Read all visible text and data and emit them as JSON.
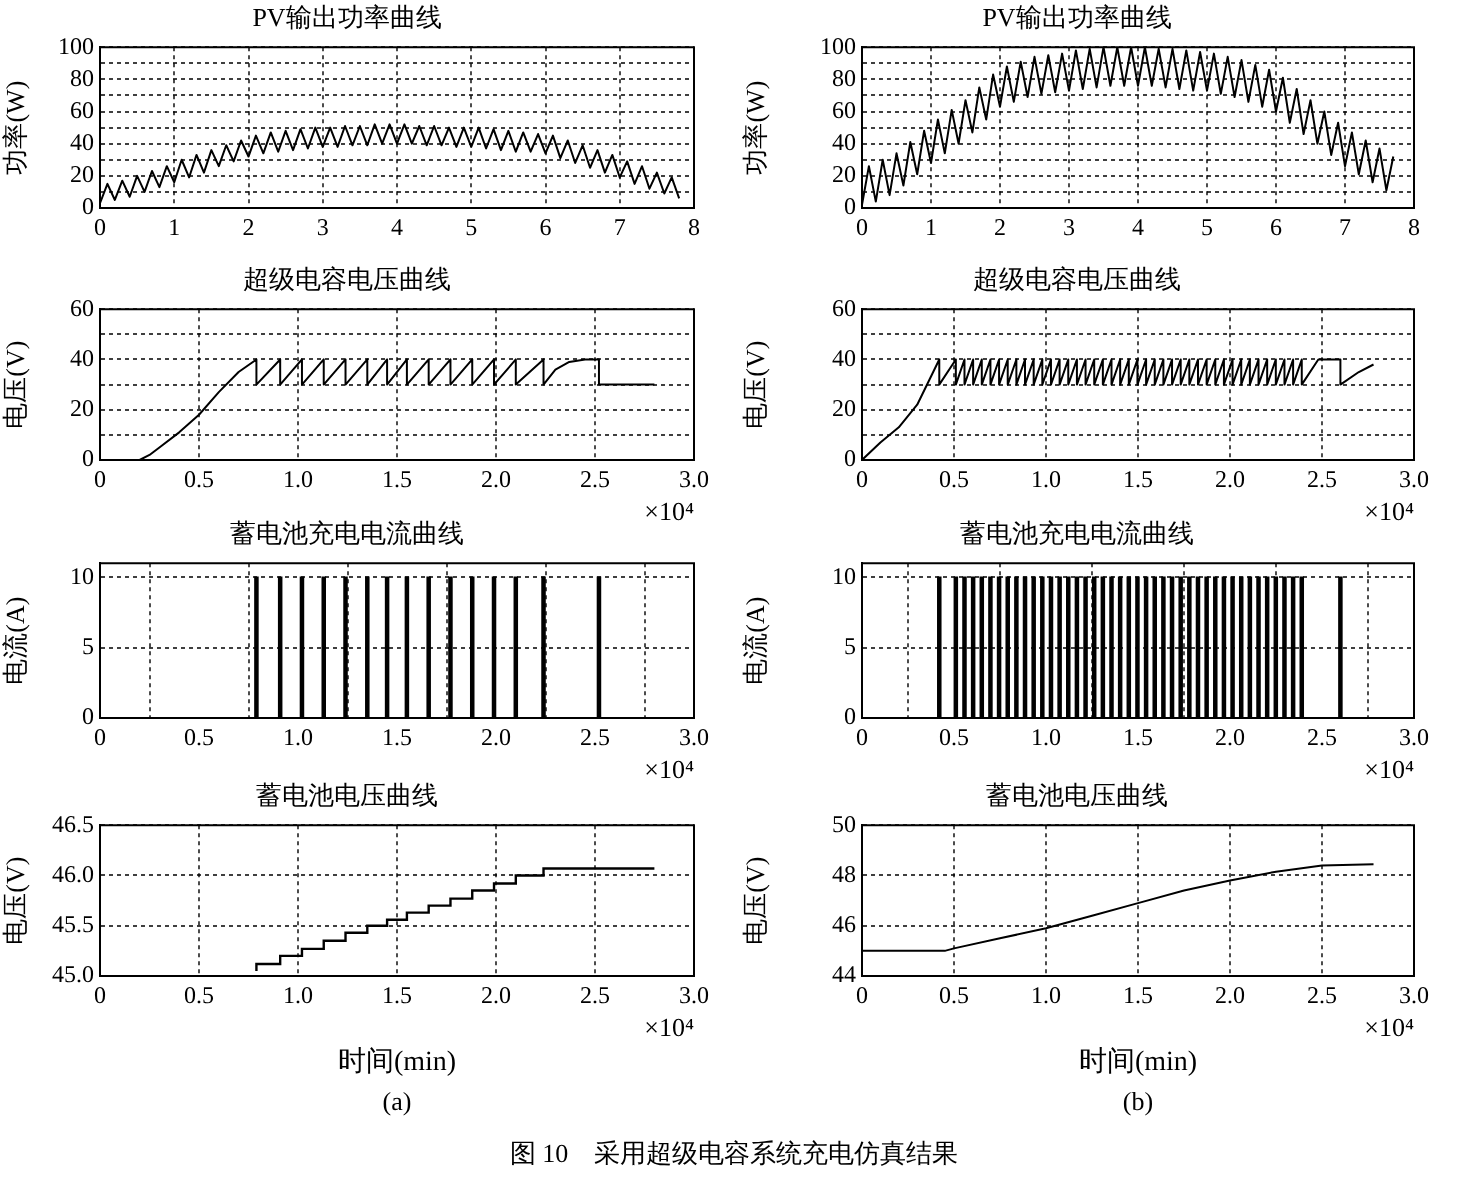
{
  "chart_data": [
    {
      "type": "line",
      "title": "PV输出功率曲线",
      "ylabel": "功率(W)",
      "grid": true,
      "color": "#000000",
      "xlim": [
        0,
        8
      ],
      "xticks": [
        0,
        1,
        2,
        3,
        4,
        5,
        6,
        7,
        8
      ],
      "ylim": [
        0,
        100
      ],
      "yticks": [
        0,
        {
          "value": 10,
          "label": null
        },
        20,
        {
          "value": 30,
          "label": null
        },
        40,
        {
          "value": 50,
          "label": null
        },
        60,
        {
          "value": 70,
          "label": null
        },
        80,
        {
          "value": 90,
          "label": null
        },
        100
      ],
      "x": [
        0,
        0.1,
        0.2,
        0.3,
        0.4,
        0.5,
        0.6,
        0.7,
        0.8,
        0.9,
        1,
        1.1,
        1.2,
        1.3,
        1.4,
        1.5,
        1.6,
        1.7,
        1.8,
        1.9,
        2,
        2.1,
        2.2,
        2.3,
        2.4,
        2.5,
        2.6,
        2.7,
        2.8,
        2.9,
        3,
        3.1,
        3.2,
        3.3,
        3.4,
        3.5,
        3.6,
        3.7,
        3.8,
        3.9,
        4,
        4.1,
        4.2,
        4.3,
        4.4,
        4.5,
        4.6,
        4.7,
        4.8,
        4.9,
        5,
        5.1,
        5.2,
        5.3,
        5.4,
        5.5,
        5.6,
        5.7,
        5.8,
        5.9,
        6,
        6.1,
        6.2,
        6.3,
        6.4,
        6.5,
        6.6,
        6.7,
        6.8,
        6.9,
        7,
        7.1,
        7.2,
        7.3,
        7.4,
        7.5,
        7.6,
        7.7,
        7.8
      ],
      "values": [
        3,
        15,
        5,
        17,
        7,
        20,
        10,
        23,
        13,
        26,
        16,
        30,
        19,
        33,
        22,
        36,
        26,
        39,
        29,
        42,
        32,
        45,
        34,
        47,
        35,
        48,
        36,
        49,
        37,
        50,
        38,
        50,
        38,
        51,
        39,
        51,
        39,
        52,
        40,
        52,
        40,
        52,
        40,
        51,
        39,
        51,
        39,
        50,
        38,
        50,
        38,
        50,
        37,
        49,
        36,
        48,
        35,
        47,
        35,
        46,
        34,
        45,
        31,
        42,
        28,
        39,
        25,
        36,
        22,
        33,
        19,
        29,
        15,
        26,
        12,
        22,
        9,
        19,
        6
      ]
    },
    {
      "type": "line",
      "title": "超级电容电压曲线",
      "ylabel": "电压(V)",
      "annotations": [
        "×10⁴"
      ],
      "grid": true,
      "color": "#000000",
      "xlim": [
        0,
        3
      ],
      "xticks": [
        0,
        0.5,
        {
          "value": 1,
          "label": "1.0"
        },
        1.5,
        {
          "value": 2,
          "label": "2.0"
        },
        2.5,
        {
          "value": 3,
          "label": "3.0"
        }
      ],
      "ylim": [
        0,
        60
      ],
      "yticks": [
        0,
        {
          "value": 10,
          "label": null
        },
        20,
        {
          "value": 30,
          "label": null
        },
        40,
        {
          "value": 50,
          "label": null
        },
        60
      ],
      "x": [
        0,
        0.2,
        0.25,
        0.3,
        0.4,
        0.5,
        0.6,
        0.7,
        0.79,
        0.79,
        0.91,
        0.91,
        1.02,
        1.02,
        1.13,
        1.13,
        1.24,
        1.24,
        1.35,
        1.35,
        1.45,
        1.45,
        1.55,
        1.55,
        1.66,
        1.66,
        1.77,
        1.77,
        1.88,
        1.88,
        1.99,
        1.99,
        2.1,
        2.1,
        2.24,
        2.24,
        2.3,
        2.37,
        2.45,
        2.52,
        2.52,
        2.8
      ],
      "values": [
        0,
        0,
        2,
        5,
        11,
        18,
        27,
        35,
        40,
        30,
        40,
        30,
        40,
        30,
        40,
        30,
        40,
        30,
        40,
        30,
        40,
        30,
        40,
        30,
        40,
        30,
        40,
        30,
        40,
        30,
        40,
        30,
        40,
        30,
        40,
        30,
        36,
        39,
        40,
        40,
        30,
        30
      ]
    },
    {
      "type": "bar",
      "title": "蓄电池充电电流曲线",
      "ylabel": "电流(A)",
      "annotations": [
        "×10⁴"
      ],
      "grid": true,
      "color": "#000000",
      "xlim": [
        0,
        3
      ],
      "xticks": [
        0,
        0.5,
        {
          "value": 1,
          "label": "1.0"
        },
        1.5,
        {
          "value": 2,
          "label": "2.0"
        },
        2.5,
        {
          "value": 3,
          "label": "3.0"
        }
      ],
      "ylim": [
        0,
        11
      ],
      "yticks": [
        0,
        5,
        10
      ],
      "x": [
        0.79,
        0.91,
        1.02,
        1.13,
        1.24,
        1.35,
        1.45,
        1.55,
        1.66,
        1.77,
        1.88,
        1.99,
        2.1,
        2.24,
        2.52
      ],
      "values": [
        10,
        10,
        10,
        10,
        10,
        10,
        10,
        10,
        10,
        10,
        10,
        10,
        10,
        10,
        10
      ]
    },
    {
      "type": "step",
      "title": "蓄电池电压曲线",
      "ylabel": "电压(V)",
      "xlabel": "时间(min)",
      "annotations": [
        "×10⁴",
        "(a)",
        "图 10　采用超级电容系统充电仿真结果"
      ],
      "grid": true,
      "color": "#000000",
      "xlim": [
        0,
        3
      ],
      "xticks": [
        0,
        0.5,
        {
          "value": 1,
          "label": "1.0"
        },
        1.5,
        {
          "value": 2,
          "label": "2.0"
        },
        2.5,
        {
          "value": 3,
          "label": "3.0"
        }
      ],
      "ylim": [
        45,
        46.5
      ],
      "yticks": [
        {
          "value": 45,
          "label": "45.0"
        },
        45.5,
        {
          "value": 46,
          "label": "46.0"
        },
        46.5
      ],
      "x": [
        0.79,
        0.91,
        1.02,
        1.13,
        1.24,
        1.35,
        1.45,
        1.55,
        1.66,
        1.77,
        1.88,
        1.99,
        2.1,
        2.24,
        2.52,
        2.8
      ],
      "values": [
        45.05,
        45.12,
        45.2,
        45.27,
        45.35,
        45.43,
        45.5,
        45.56,
        45.63,
        45.7,
        45.77,
        45.85,
        45.92,
        46.0,
        46.07,
        46.07
      ]
    },
    {
      "type": "line",
      "title": "PV输出功率曲线",
      "ylabel": "功率(W)",
      "grid": true,
      "color": "#000000",
      "xlim": [
        0,
        8
      ],
      "xticks": [
        0,
        1,
        2,
        3,
        4,
        5,
        6,
        7,
        8
      ],
      "ylim": [
        0,
        100
      ],
      "yticks": [
        0,
        {
          "value": 10,
          "label": null
        },
        20,
        {
          "value": 30,
          "label": null
        },
        40,
        {
          "value": 50,
          "label": null
        },
        60,
        {
          "value": 70,
          "label": null
        },
        80,
        {
          "value": 90,
          "label": null
        },
        100
      ],
      "x": [
        0,
        0.1,
        0.2,
        0.3,
        0.4,
        0.5,
        0.6,
        0.7,
        0.8,
        0.9,
        1,
        1.1,
        1.2,
        1.3,
        1.4,
        1.5,
        1.6,
        1.7,
        1.8,
        1.9,
        2,
        2.1,
        2.2,
        2.3,
        2.4,
        2.5,
        2.6,
        2.7,
        2.8,
        2.9,
        3,
        3.1,
        3.2,
        3.3,
        3.4,
        3.5,
        3.6,
        3.7,
        3.8,
        3.9,
        4,
        4.1,
        4.2,
        4.3,
        4.4,
        4.5,
        4.6,
        4.7,
        4.8,
        4.9,
        5,
        5.1,
        5.2,
        5.3,
        5.4,
        5.5,
        5.6,
        5.7,
        5.8,
        5.9,
        6,
        6.1,
        6.2,
        6.3,
        6.4,
        6.5,
        6.6,
        6.7,
        6.8,
        6.9,
        7,
        7.1,
        7.2,
        7.3,
        7.4,
        7.5,
        7.6,
        7.7
      ],
      "values": [
        2,
        26,
        4,
        30,
        8,
        34,
        14,
        41,
        21,
        48,
        28,
        55,
        34,
        61,
        40,
        67,
        47,
        75,
        55,
        83,
        63,
        88,
        66,
        91,
        69,
        94,
        71,
        95,
        72,
        96,
        73,
        98,
        74,
        99,
        75,
        100,
        76,
        100,
        76,
        100,
        76,
        100,
        76,
        99,
        75,
        99,
        74,
        98,
        73,
        97,
        73,
        96,
        71,
        94,
        69,
        92,
        66,
        89,
        63,
        86,
        60,
        81,
        53,
        74,
        46,
        67,
        40,
        60,
        33,
        53,
        26,
        47,
        21,
        42,
        16,
        37,
        11,
        32
      ]
    },
    {
      "type": "line",
      "title": "超级电容电压曲线",
      "ylabel": "电压(V)",
      "annotations": [
        "×10⁴"
      ],
      "grid": true,
      "color": "#000000",
      "xlim": [
        0,
        3
      ],
      "xticks": [
        0,
        0.5,
        {
          "value": 1,
          "label": "1.0"
        },
        1.5,
        {
          "value": 2,
          "label": "2.0"
        },
        2.5,
        {
          "value": 3,
          "label": "3.0"
        }
      ],
      "ylim": [
        0,
        60
      ],
      "yticks": [
        0,
        {
          "value": 10,
          "label": null
        },
        20,
        {
          "value": 30,
          "label": null
        },
        40,
        {
          "value": 50,
          "label": null
        },
        60
      ],
      "x": [
        0,
        0.1,
        0.2,
        0.3,
        0.42,
        0.42,
        0.51,
        0.51,
        0.557,
        0.557,
        0.604,
        0.604,
        0.651,
        0.651,
        0.698,
        0.698,
        0.745,
        0.745,
        0.792,
        0.792,
        0.839,
        0.839,
        0.886,
        0.886,
        0.933,
        0.933,
        0.98,
        0.98,
        1.027,
        1.027,
        1.074,
        1.074,
        1.121,
        1.121,
        1.168,
        1.168,
        1.215,
        1.215,
        1.262,
        1.262,
        1.309,
        1.309,
        1.356,
        1.356,
        1.403,
        1.403,
        1.45,
        1.45,
        1.497,
        1.497,
        1.544,
        1.544,
        1.591,
        1.591,
        1.638,
        1.638,
        1.685,
        1.685,
        1.732,
        1.732,
        1.779,
        1.779,
        1.826,
        1.826,
        1.873,
        1.873,
        1.92,
        1.92,
        1.967,
        1.967,
        2.014,
        2.014,
        2.061,
        2.061,
        2.108,
        2.108,
        2.155,
        2.155,
        2.202,
        2.202,
        2.249,
        2.249,
        2.296,
        2.296,
        2.343,
        2.343,
        2.39,
        2.39,
        2.48,
        2.6,
        2.6,
        2.7,
        2.78
      ],
      "values": [
        0,
        7,
        13,
        22,
        40,
        30,
        40,
        30,
        40,
        30,
        40,
        30,
        40,
        30,
        40,
        30,
        40,
        30,
        40,
        30,
        40,
        30,
        40,
        30,
        40,
        30,
        40,
        30,
        40,
        30,
        40,
        30,
        40,
        30,
        40,
        30,
        40,
        30,
        40,
        30,
        40,
        30,
        40,
        30,
        40,
        30,
        40,
        30,
        40,
        30,
        40,
        30,
        40,
        30,
        40,
        30,
        40,
        30,
        40,
        30,
        40,
        30,
        40,
        30,
        40,
        30,
        40,
        30,
        40,
        30,
        40,
        30,
        40,
        30,
        40,
        30,
        40,
        30,
        40,
        30,
        40,
        30,
        40,
        30,
        40,
        30,
        40,
        30,
        40,
        40,
        30,
        35,
        38
      ]
    },
    {
      "type": "bar",
      "title": "蓄电池充电电流曲线",
      "ylabel": "电流(A)",
      "annotations": [
        "×10⁴"
      ],
      "grid": true,
      "color": "#000000",
      "xlim": [
        0,
        3
      ],
      "xticks": [
        0,
        0.5,
        {
          "value": 1,
          "label": "1.0"
        },
        1.5,
        {
          "value": 2,
          "label": "2.0"
        },
        2.5,
        {
          "value": 3,
          "label": "3.0"
        }
      ],
      "ylim": [
        0,
        11
      ],
      "yticks": [
        0,
        5,
        10
      ],
      "x": [
        0.42,
        0.51,
        0.557,
        0.604,
        0.651,
        0.698,
        0.745,
        0.792,
        0.839,
        0.886,
        0.933,
        0.98,
        1.027,
        1.074,
        1.121,
        1.168,
        1.215,
        1.262,
        1.309,
        1.356,
        1.403,
        1.45,
        1.497,
        1.544,
        1.591,
        1.638,
        1.685,
        1.732,
        1.779,
        1.826,
        1.873,
        1.92,
        1.967,
        2.014,
        2.061,
        2.108,
        2.155,
        2.202,
        2.249,
        2.296,
        2.343,
        2.39,
        2.6
      ],
      "values": [
        10,
        10,
        10,
        10,
        10,
        10,
        10,
        10,
        10,
        10,
        10,
        10,
        10,
        10,
        10,
        10,
        10,
        10,
        10,
        10,
        10,
        10,
        10,
        10,
        10,
        10,
        10,
        10,
        10,
        10,
        10,
        10,
        10,
        10,
        10,
        10,
        10,
        10,
        10,
        10,
        10,
        10,
        10
      ]
    },
    {
      "type": "line",
      "title": "蓄电池电压曲线",
      "ylabel": "电压(V)",
      "xlabel": "时间(min)",
      "annotations": [
        "×10⁴",
        "(b)"
      ],
      "grid": true,
      "color": "#000000",
      "xlim": [
        0,
        3
      ],
      "xticks": [
        0,
        0.5,
        {
          "value": 1,
          "label": "1.0"
        },
        1.5,
        {
          "value": 2,
          "label": "2.0"
        },
        2.5,
        {
          "value": 3,
          "label": "3.0"
        }
      ],
      "ylim": [
        44,
        50
      ],
      "yticks": [
        44,
        46,
        48,
        50
      ],
      "x": [
        0,
        0.45,
        0.5,
        0.75,
        1,
        1.25,
        1.5,
        1.75,
        2,
        2.25,
        2.5,
        2.78
      ],
      "values": [
        45,
        45,
        45.1,
        45.5,
        45.9,
        46.4,
        46.9,
        47.4,
        47.8,
        48.15,
        48.4,
        48.45
      ]
    }
  ]
}
